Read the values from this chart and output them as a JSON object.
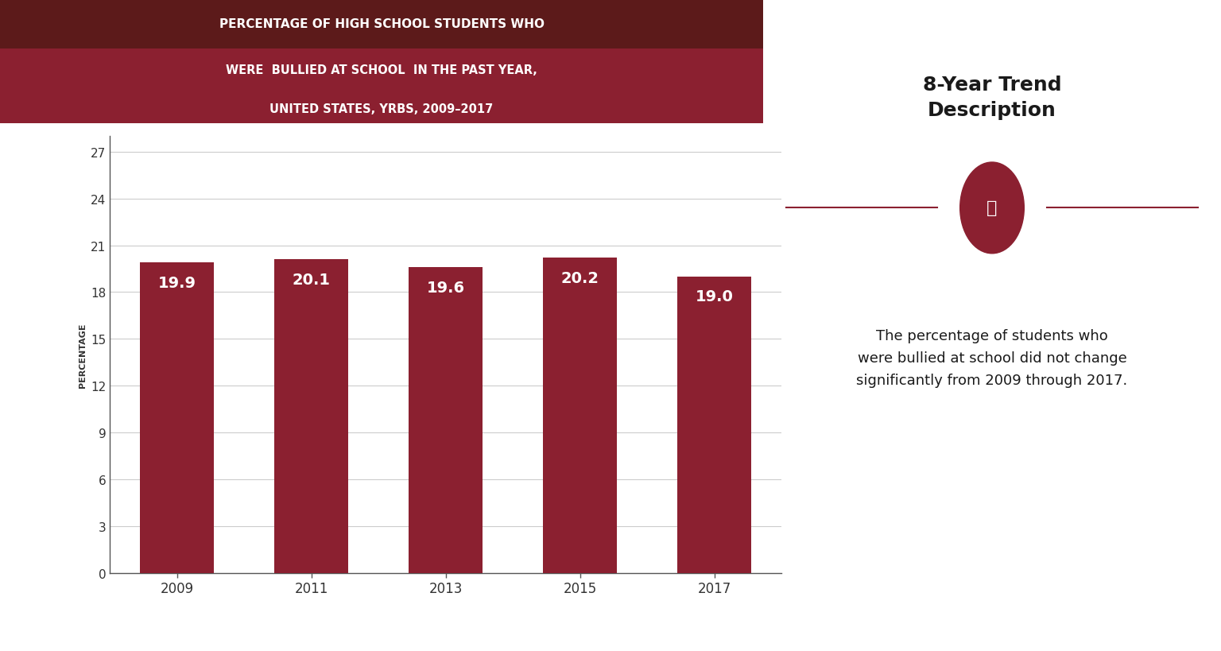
{
  "years": [
    "2009",
    "2011",
    "2013",
    "2015",
    "2017"
  ],
  "values": [
    19.9,
    20.1,
    19.6,
    20.2,
    19.0
  ],
  "bar_color": "#8B2030",
  "title_top": "PERCENTAGE OF HIGH SCHOOL STUDENTS WHO",
  "title_top_bg": "#5C1A1A",
  "title_sub": "WERE  BULLIED AT SCHOOL  IN THE PAST YEAR,\nUNITED STATES, YRBS, 2009–2017",
  "title_sub_bg": "#8B2030",
  "ylabel": "PERCENTAGE",
  "ylim": [
    0,
    28
  ],
  "yticks": [
    0,
    3,
    6,
    9,
    12,
    15,
    18,
    21,
    24,
    27
  ],
  "chart_bg": "#FFFFFF",
  "left_panel_bg": "#FFFFFF",
  "right_panel_bg": "#E8D8D8",
  "right_title": "8-Year Trend\nDescription",
  "right_text": "The percentage of students who\nwere bullied at school did not change\nsignificantly from 2009 through 2017.",
  "border_color": "#8B8B8B",
  "line_color": "#8B2030",
  "value_label_color": "#FFFFFF",
  "value_label_fontsize": 14,
  "axis_label_color": "#333333"
}
